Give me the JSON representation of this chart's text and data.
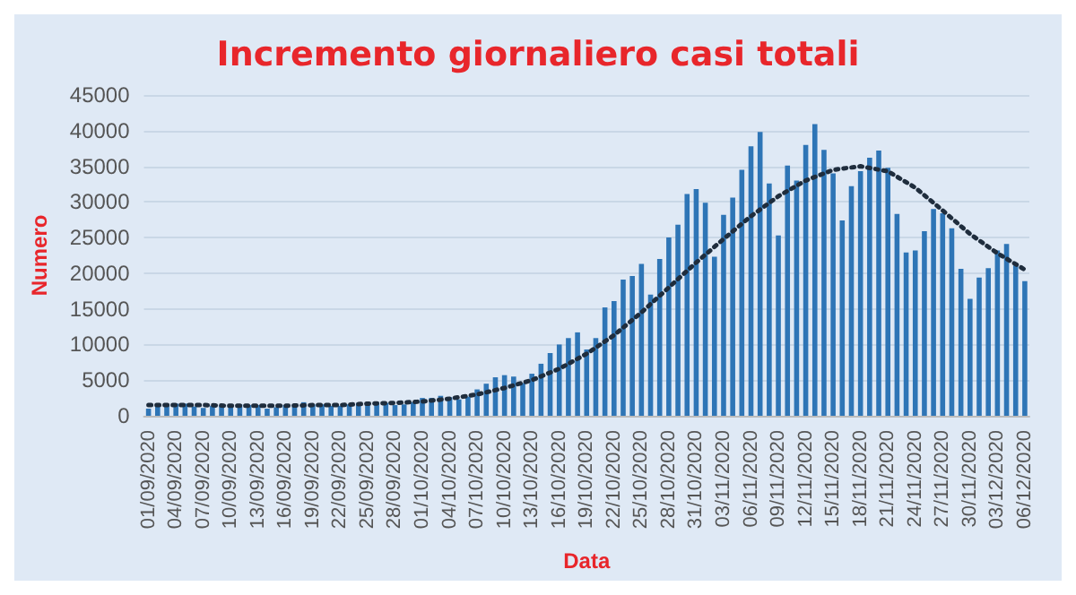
{
  "chart_data": {
    "type": "bar",
    "title": "Incremento giornaliero casi totali",
    "xlabel": "Data",
    "ylabel": "Numero",
    "categories": [
      "01/09/2020",
      null,
      null,
      "04/09/2020",
      null,
      null,
      "07/09/2020",
      null,
      null,
      "10/09/2020",
      null,
      null,
      "13/09/2020",
      null,
      null,
      "16/09/2020",
      null,
      null,
      "19/09/2020",
      null,
      null,
      "22/09/2020",
      null,
      null,
      "25/09/2020",
      null,
      null,
      "28/09/2020",
      null,
      null,
      "01/10/2020",
      null,
      null,
      "04/10/2020",
      null,
      null,
      "07/10/2020",
      null,
      null,
      "10/10/2020",
      null,
      null,
      "13/10/2020",
      null,
      null,
      "16/10/2020",
      null,
      null,
      "19/10/2020",
      null,
      null,
      "22/10/2020",
      null,
      null,
      "25/10/2020",
      null,
      null,
      "28/10/2020",
      null,
      null,
      "31/10/2020",
      null,
      null,
      "03/11/2020",
      null,
      null,
      "06/11/2020",
      null,
      null,
      "09/11/2020",
      null,
      null,
      "12/11/2020",
      null,
      null,
      "15/11/2020",
      null,
      null,
      "18/11/2020",
      null,
      null,
      "21/11/2020",
      null,
      null,
      "24/11/2020",
      null,
      null,
      "27/11/2020",
      null,
      null,
      "30/11/2020",
      null,
      null,
      "03/12/2020",
      null,
      null,
      "06/12/2020"
    ],
    "series": [
      {
        "color": "#2e75b6",
        "values": [
          1000,
          1300,
          1400,
          1700,
          1700,
          1300,
          1100,
          1400,
          1400,
          1600,
          1600,
          1500,
          1500,
          1000,
          1200,
          1500,
          1600,
          1900,
          1600,
          1600,
          1400,
          1400,
          1600,
          1800,
          1900,
          1900,
          1800,
          1500,
          1600,
          1900,
          2500,
          2500,
          2800,
          2600,
          2300,
          2700,
          3700,
          4500,
          5400,
          5700,
          5500,
          4600,
          5900,
          7300,
          8800,
          10000,
          10900,
          11700,
          9300,
          10900,
          15200,
          16100,
          19100,
          19600,
          21300,
          17000,
          22000,
          25000,
          26800,
          31100,
          31800,
          29900,
          22300,
          28200,
          30600,
          34500,
          37800,
          39800,
          32600,
          25300,
          35100,
          33000,
          38000,
          40900,
          37300,
          34000,
          27400,
          32200,
          34300,
          36200,
          37200,
          34800,
          28300,
          22900,
          23200,
          25900,
          29000,
          28400,
          26300,
          20600,
          16400,
          19400,
          20700,
          23200,
          24100,
          21100,
          18900
        ]
      },
      {
        "type": "line",
        "color": "#1f2d3d",
        "line_style": "dotted",
        "marker": "none",
        "x": [
          "01/09/2020",
          "04/09/2020",
          "07/09/2020",
          "10/09/2020",
          "13/09/2020",
          "16/09/2020",
          "19/09/2020",
          "22/09/2020",
          "25/09/2020",
          "28/09/2020",
          "01/10/2020",
          "04/10/2020",
          "07/10/2020",
          "10/10/2020",
          "13/10/2020",
          "16/10/2020",
          "19/10/2020",
          "22/10/2020",
          "25/10/2020",
          "28/10/2020",
          "31/10/2020",
          "03/11/2020",
          "06/11/2020",
          "09/11/2020",
          "12/11/2020",
          "15/11/2020",
          "18/11/2020",
          "21/11/2020",
          "24/11/2020",
          "27/11/2020",
          "30/11/2020",
          "03/12/2020",
          "06/12/2020"
        ],
        "values": [
          1500,
          1500,
          1500,
          1400,
          1400,
          1400,
          1500,
          1500,
          1700,
          1800,
          2000,
          2400,
          3000,
          3900,
          5000,
          6600,
          8700,
          11300,
          14500,
          18000,
          21500,
          24800,
          28000,
          30800,
          33000,
          34500,
          35000,
          34300,
          32000,
          28800,
          25500,
          22800,
          20500
        ]
      }
    ],
    "ylim": [
      0,
      45000
    ],
    "yticks": [
      0,
      5000,
      10000,
      15000,
      20000,
      25000,
      30000,
      35000,
      40000,
      45000
    ],
    "grid": "y"
  }
}
